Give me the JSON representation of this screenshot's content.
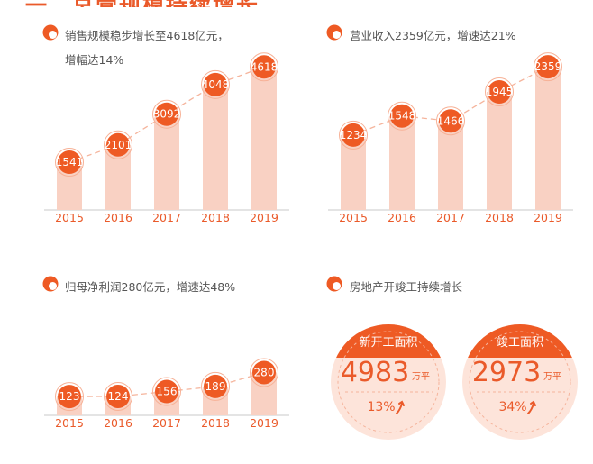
{
  "header": {
    "fragment": "一、总营规模持续增长"
  },
  "colors": {
    "accent": "#ee5a24",
    "bar": "#f9d1c3",
    "circle_fill": "#fde4da",
    "trend": "#f5b49c",
    "tick": "#ea5a2a"
  },
  "chart_data": [
    {
      "type": "bar",
      "title_lines": [
        "销售规模稳步增长至4618亿元，",
        "增幅达14%"
      ],
      "categories": [
        "2015",
        "2016",
        "2017",
        "2018",
        "2019"
      ],
      "values": [
        1541,
        2101,
        3092,
        4048,
        4618
      ],
      "ylim": [
        0,
        4800
      ],
      "grid": false
    },
    {
      "type": "bar",
      "title_lines": [
        "营业收入2359亿元，增速达21%"
      ],
      "categories": [
        "2015",
        "2016",
        "2017",
        "2018",
        "2019"
      ],
      "values": [
        1234,
        1548,
        1466,
        1945,
        2359
      ],
      "ylim": [
        0,
        2450
      ],
      "grid": false
    },
    {
      "type": "bar",
      "title_lines": [
        "归母净利润280亿元，增速达48%"
      ],
      "categories": [
        "2015",
        "2016",
        "2017",
        "2018",
        "2019"
      ],
      "values": [
        123,
        124,
        156,
        189,
        280
      ],
      "ylim": [
        0,
        430
      ],
      "grid": false
    }
  ],
  "real_estate": {
    "title": "房地产开竣工持续增长",
    "cards": [
      {
        "label": "新开工面积",
        "value": "4983",
        "unit": "万平",
        "growth": "13%",
        "arrow_icon": "up-arrow-icon"
      },
      {
        "label": "竣工面积",
        "value": "2973",
        "unit": "万平",
        "growth": "34%",
        "arrow_icon": "up-arrow-icon"
      }
    ]
  }
}
